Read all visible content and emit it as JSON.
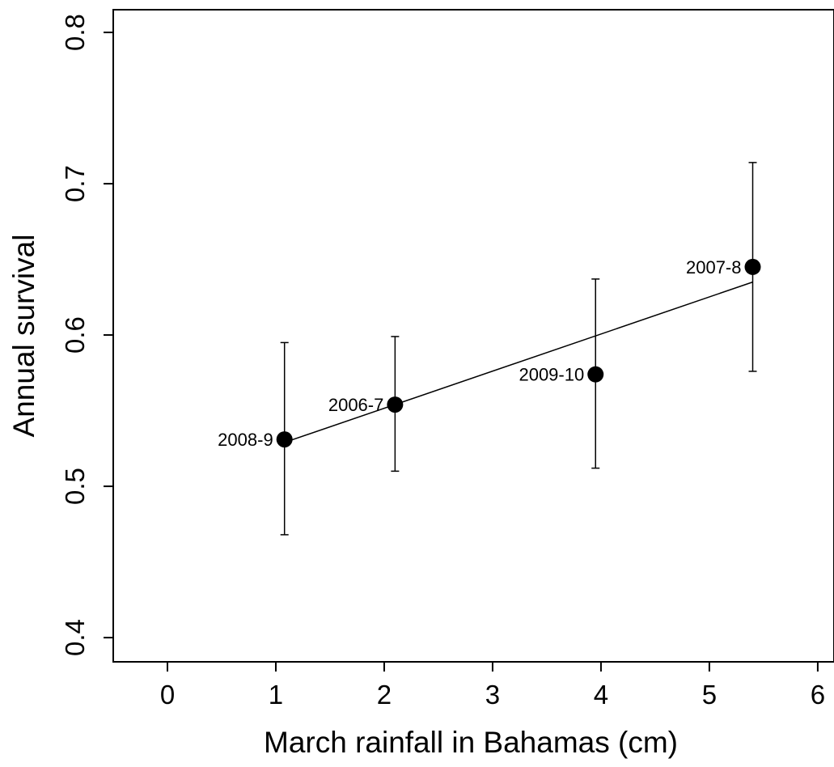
{
  "chart_data": {
    "type": "scatter",
    "title": "",
    "xlabel": "March rainfall in Bahamas (cm)",
    "ylabel": "Annual survival",
    "xlim": [
      -0.5,
      6.15
    ],
    "ylim": [
      0.384,
      0.815
    ],
    "xticks": [
      0,
      1,
      2,
      3,
      4,
      5,
      6
    ],
    "yticks": [
      0.4,
      0.5,
      0.6,
      0.7,
      0.8
    ],
    "ytick_labels": [
      "0.4",
      "0.5",
      "0.6",
      "0.7",
      "0.8"
    ],
    "grid": false,
    "points": [
      {
        "label": "2008-9",
        "x": 1.08,
        "y": 0.531,
        "err_low": 0.468,
        "err_high": 0.595
      },
      {
        "label": "2006-7",
        "x": 2.1,
        "y": 0.554,
        "err_low": 0.51,
        "err_high": 0.599
      },
      {
        "label": "2009-10",
        "x": 3.95,
        "y": 0.574,
        "err_low": 0.512,
        "err_high": 0.637
      },
      {
        "label": "2007-8",
        "x": 5.4,
        "y": 0.645,
        "err_low": 0.576,
        "err_high": 0.714
      }
    ],
    "fit_line": {
      "x": [
        1.08,
        5.4
      ],
      "y": [
        0.529,
        0.635
      ]
    },
    "colors": {
      "marker": "#000000",
      "line": "#000000"
    }
  }
}
